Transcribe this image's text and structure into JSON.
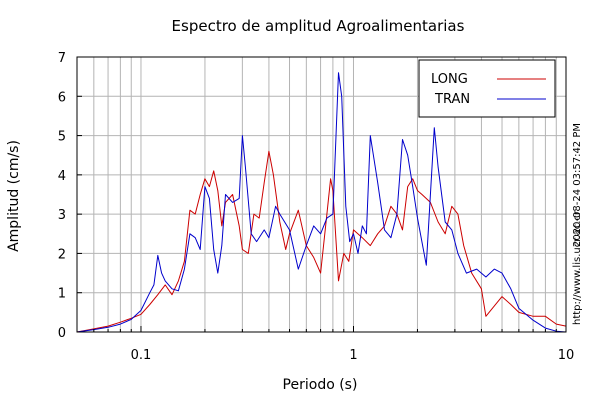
{
  "chart_data": {
    "type": "line",
    "title": "Espectro de amplitud Agroalimentarias",
    "xlabel": "Periodo (s)",
    "ylabel": "Amplitud (cm/s)",
    "xscale": "log",
    "xlim": [
      0.05,
      10
    ],
    "ylim": [
      0,
      7
    ],
    "grid": true,
    "legend_position": "top-right",
    "x_ticks": [
      {
        "value": 0.1,
        "label": "0.1"
      },
      {
        "value": 1,
        "label": "1"
      },
      {
        "value": 10,
        "label": "10"
      }
    ],
    "y_ticks": [
      {
        "value": 0,
        "label": "0"
      },
      {
        "value": 1,
        "label": "1"
      },
      {
        "value": 2,
        "label": "2"
      },
      {
        "value": 3,
        "label": "3"
      },
      {
        "value": 4,
        "label": "4"
      },
      {
        "value": 5,
        "label": "5"
      },
      {
        "value": 6,
        "label": "6"
      },
      {
        "value": 7,
        "label": "7"
      }
    ],
    "series": [
      {
        "name": "LONG",
        "color": "#cc0000",
        "points": [
          [
            0.05,
            0.0
          ],
          [
            0.06,
            0.08
          ],
          [
            0.07,
            0.15
          ],
          [
            0.08,
            0.25
          ],
          [
            0.09,
            0.35
          ],
          [
            0.1,
            0.45
          ],
          [
            0.11,
            0.7
          ],
          [
            0.12,
            0.95
          ],
          [
            0.13,
            1.2
          ],
          [
            0.14,
            0.95
          ],
          [
            0.15,
            1.3
          ],
          [
            0.16,
            1.8
          ],
          [
            0.17,
            3.1
          ],
          [
            0.18,
            3.0
          ],
          [
            0.19,
            3.5
          ],
          [
            0.2,
            3.9
          ],
          [
            0.21,
            3.7
          ],
          [
            0.22,
            4.1
          ],
          [
            0.23,
            3.6
          ],
          [
            0.24,
            2.7
          ],
          [
            0.25,
            3.3
          ],
          [
            0.27,
            3.5
          ],
          [
            0.29,
            2.7
          ],
          [
            0.3,
            2.1
          ],
          [
            0.32,
            2.0
          ],
          [
            0.34,
            3.0
          ],
          [
            0.36,
            2.9
          ],
          [
            0.38,
            3.8
          ],
          [
            0.4,
            4.6
          ],
          [
            0.42,
            4.0
          ],
          [
            0.45,
            2.8
          ],
          [
            0.48,
            2.1
          ],
          [
            0.5,
            2.5
          ],
          [
            0.55,
            3.1
          ],
          [
            0.6,
            2.2
          ],
          [
            0.65,
            1.9
          ],
          [
            0.7,
            1.5
          ],
          [
            0.75,
            3.0
          ],
          [
            0.78,
            3.9
          ],
          [
            0.8,
            3.6
          ],
          [
            0.85,
            1.3
          ],
          [
            0.9,
            2.0
          ],
          [
            0.95,
            1.8
          ],
          [
            1.0,
            2.6
          ],
          [
            1.1,
            2.4
          ],
          [
            1.2,
            2.2
          ],
          [
            1.3,
            2.5
          ],
          [
            1.4,
            2.7
          ],
          [
            1.5,
            3.2
          ],
          [
            1.6,
            3.0
          ],
          [
            1.7,
            2.6
          ],
          [
            1.8,
            3.7
          ],
          [
            1.9,
            3.9
          ],
          [
            2.0,
            3.6
          ],
          [
            2.1,
            3.5
          ],
          [
            2.3,
            3.3
          ],
          [
            2.5,
            2.8
          ],
          [
            2.7,
            2.5
          ],
          [
            2.9,
            3.2
          ],
          [
            3.1,
            3.0
          ],
          [
            3.3,
            2.2
          ],
          [
            3.6,
            1.5
          ],
          [
            4.0,
            1.1
          ],
          [
            4.2,
            0.4
          ],
          [
            4.5,
            0.6
          ],
          [
            5.0,
            0.9
          ],
          [
            5.5,
            0.7
          ],
          [
            6.0,
            0.5
          ],
          [
            7.0,
            0.4
          ],
          [
            8.0,
            0.4
          ],
          [
            9.0,
            0.2
          ],
          [
            10.0,
            0.15
          ]
        ]
      },
      {
        "name": "TRAN",
        "color": "#0000cc",
        "points": [
          [
            0.05,
            0.0
          ],
          [
            0.06,
            0.06
          ],
          [
            0.07,
            0.12
          ],
          [
            0.08,
            0.2
          ],
          [
            0.09,
            0.32
          ],
          [
            0.1,
            0.55
          ],
          [
            0.11,
            1.0
          ],
          [
            0.115,
            1.2
          ],
          [
            0.12,
            1.95
          ],
          [
            0.125,
            1.5
          ],
          [
            0.13,
            1.3
          ],
          [
            0.14,
            1.1
          ],
          [
            0.15,
            1.05
          ],
          [
            0.16,
            1.6
          ],
          [
            0.17,
            2.5
          ],
          [
            0.18,
            2.4
          ],
          [
            0.19,
            2.1
          ],
          [
            0.2,
            3.7
          ],
          [
            0.21,
            3.4
          ],
          [
            0.22,
            2.1
          ],
          [
            0.23,
            1.5
          ],
          [
            0.24,
            2.2
          ],
          [
            0.25,
            3.5
          ],
          [
            0.27,
            3.3
          ],
          [
            0.29,
            3.4
          ],
          [
            0.3,
            5.0
          ],
          [
            0.31,
            4.2
          ],
          [
            0.33,
            2.5
          ],
          [
            0.35,
            2.3
          ],
          [
            0.38,
            2.6
          ],
          [
            0.4,
            2.4
          ],
          [
            0.43,
            3.2
          ],
          [
            0.45,
            3.0
          ],
          [
            0.5,
            2.6
          ],
          [
            0.55,
            1.6
          ],
          [
            0.6,
            2.2
          ],
          [
            0.65,
            2.7
          ],
          [
            0.7,
            2.5
          ],
          [
            0.75,
            2.9
          ],
          [
            0.8,
            3.0
          ],
          [
            0.85,
            6.6
          ],
          [
            0.88,
            6.0
          ],
          [
            0.92,
            3.2
          ],
          [
            0.96,
            2.3
          ],
          [
            1.0,
            2.5
          ],
          [
            1.05,
            2.0
          ],
          [
            1.1,
            2.7
          ],
          [
            1.15,
            2.5
          ],
          [
            1.2,
            5.0
          ],
          [
            1.3,
            3.8
          ],
          [
            1.4,
            2.6
          ],
          [
            1.5,
            2.4
          ],
          [
            1.6,
            3.0
          ],
          [
            1.7,
            4.9
          ],
          [
            1.8,
            4.5
          ],
          [
            1.9,
            3.7
          ],
          [
            2.0,
            2.9
          ],
          [
            2.2,
            1.7
          ],
          [
            2.4,
            5.2
          ],
          [
            2.5,
            4.2
          ],
          [
            2.7,
            2.8
          ],
          [
            2.9,
            2.6
          ],
          [
            3.1,
            2.0
          ],
          [
            3.4,
            1.5
          ],
          [
            3.8,
            1.6
          ],
          [
            4.2,
            1.4
          ],
          [
            4.6,
            1.6
          ],
          [
            5.0,
            1.5
          ],
          [
            5.5,
            1.1
          ],
          [
            6.0,
            0.6
          ],
          [
            7.0,
            0.3
          ],
          [
            8.0,
            0.1
          ],
          [
            9.0,
            0.02
          ],
          [
            10.0,
            0.0
          ]
        ]
      }
    ],
    "side_annotations": {
      "timestamp": "2020-08-24 03:57:42 PM",
      "url": "http://www.lis.ucr.ac.cr"
    }
  }
}
